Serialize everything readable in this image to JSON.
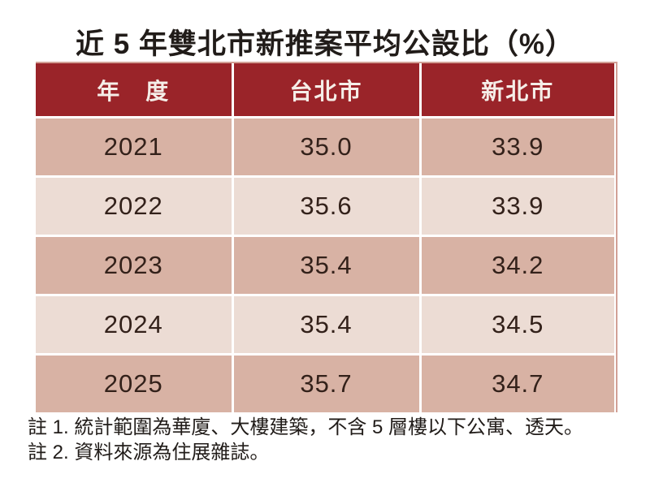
{
  "title": "近 5 年雙北市新推案平均公設比（%）",
  "table": {
    "headers": [
      "年　度",
      "台北市",
      "新北市"
    ],
    "rows": [
      [
        "2021",
        "35.0",
        "33.9"
      ],
      [
        "2022",
        "35.6",
        "33.9"
      ],
      [
        "2023",
        "35.4",
        "34.2"
      ],
      [
        "2024",
        "35.4",
        "34.5"
      ],
      [
        "2025",
        "35.7",
        "34.7"
      ]
    ]
  },
  "notes": [
    "註 1. 統計範圍為華廈、大樓建築，不含 5 層樓以下公寓、透天。",
    "註 2. 資料來源為住展雜誌。"
  ],
  "chart_data": {
    "type": "table",
    "title": "近 5 年雙北市新推案平均公設比（%）",
    "categories": [
      "2021",
      "2022",
      "2023",
      "2024",
      "2025"
    ],
    "series": [
      {
        "name": "台北市",
        "values": [
          35.0,
          35.6,
          35.4,
          35.4,
          35.7
        ]
      },
      {
        "name": "新北市",
        "values": [
          33.9,
          33.9,
          34.2,
          34.5,
          34.7
        ]
      }
    ],
    "unit": "%",
    "notes": [
      "註 1. 統計範圍為華廈、大樓建築，不含 5 層樓以下公寓、透天。",
      "註 2. 資料來源為住展雜誌。"
    ]
  },
  "colors": {
    "header_bg": "#9A2429",
    "header_text": "#F5EEE8",
    "row_dark": "#D8B2A4",
    "row_light": "#ECDCD4",
    "cell_text": "#33211A",
    "table_border": "#D2A096",
    "text": "#211C19",
    "background": "#FFFFFF"
  }
}
